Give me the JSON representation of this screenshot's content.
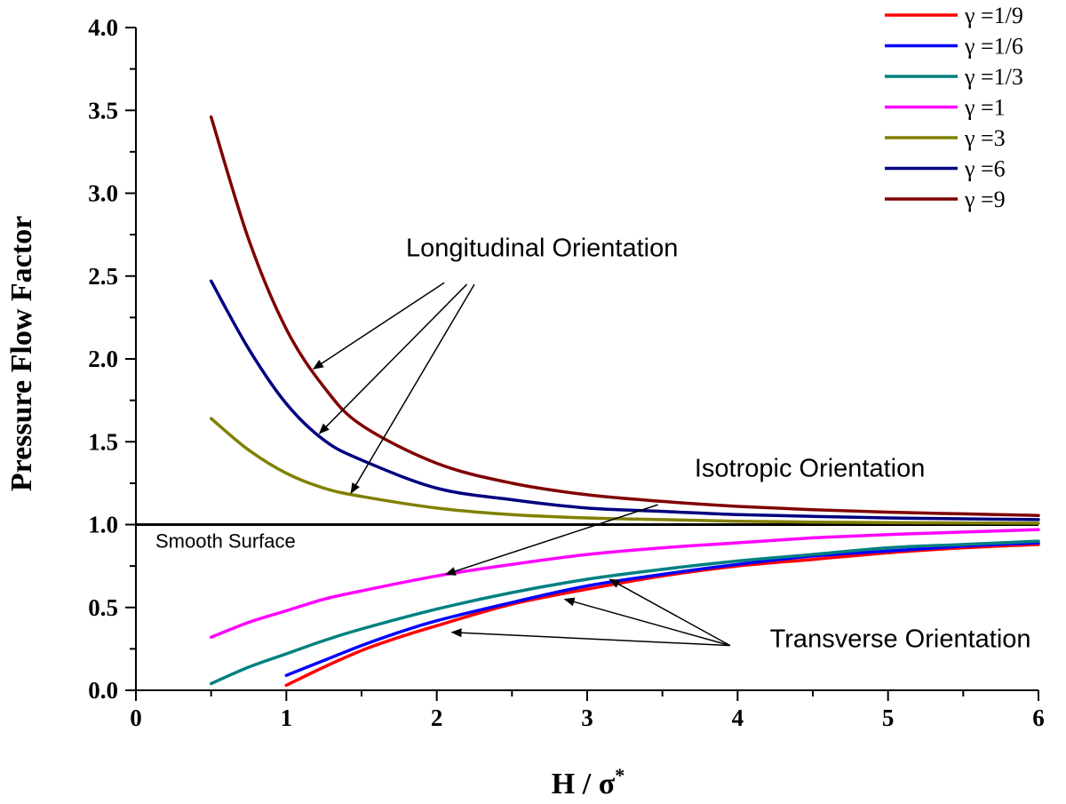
{
  "chart_data": {
    "type": "line",
    "xlabel": "H / σ",
    "xlabel_superscript": "*",
    "ylabel": "Pressure Flow Factor",
    "xlim": [
      0,
      6
    ],
    "ylim": [
      0,
      4
    ],
    "x_ticks": [
      "0",
      "1",
      "2",
      "3",
      "4",
      "5",
      "6"
    ],
    "y_ticks": [
      "0.0",
      "0.5",
      "1.0",
      "1.5",
      "2.0",
      "2.5",
      "3.0",
      "3.5",
      "4.0"
    ],
    "grid": false,
    "legend_position": "top-right",
    "series": [
      {
        "name": "γ =1/9",
        "color": "#ff0000",
        "x": [
          1.0,
          1.25,
          1.5,
          1.75,
          2.0,
          2.5,
          3.0,
          3.5,
          4.0,
          4.5,
          5.0,
          5.5,
          6.0
        ],
        "y": [
          0.03,
          0.14,
          0.24,
          0.32,
          0.39,
          0.52,
          0.61,
          0.69,
          0.75,
          0.79,
          0.83,
          0.86,
          0.88
        ]
      },
      {
        "name": "γ =1/6",
        "color": "#0000ff",
        "x": [
          1.0,
          1.25,
          1.5,
          1.75,
          2.0,
          2.5,
          3.0,
          3.5,
          4.0,
          4.5,
          5.0,
          5.5,
          6.0
        ],
        "y": [
          0.09,
          0.18,
          0.27,
          0.35,
          0.42,
          0.53,
          0.63,
          0.7,
          0.76,
          0.81,
          0.84,
          0.87,
          0.89
        ]
      },
      {
        "name": "γ =1/3",
        "color": "#008080",
        "x": [
          0.5,
          0.75,
          1.0,
          1.25,
          1.5,
          2.0,
          2.5,
          3.0,
          3.5,
          4.0,
          4.5,
          5.0,
          5.5,
          6.0
        ],
        "y": [
          0.04,
          0.14,
          0.22,
          0.3,
          0.37,
          0.49,
          0.59,
          0.67,
          0.73,
          0.78,
          0.82,
          0.86,
          0.88,
          0.9
        ]
      },
      {
        "name": "γ =1",
        "color": "#ff00ff",
        "x": [
          0.5,
          0.75,
          1.0,
          1.25,
          1.5,
          2.0,
          2.5,
          3.0,
          3.5,
          4.0,
          4.5,
          5.0,
          5.5,
          6.0
        ],
        "y": [
          0.32,
          0.41,
          0.48,
          0.55,
          0.6,
          0.69,
          0.76,
          0.82,
          0.86,
          0.89,
          0.92,
          0.94,
          0.955,
          0.97
        ]
      },
      {
        "name": "γ =3",
        "color": "#808000",
        "x": [
          0.5,
          0.75,
          1.0,
          1.25,
          1.5,
          2.0,
          2.5,
          3.0,
          3.5,
          4.0,
          4.5,
          5.0,
          5.5,
          6.0
        ],
        "y": [
          1.64,
          1.45,
          1.31,
          1.22,
          1.17,
          1.1,
          1.06,
          1.04,
          1.03,
          1.02,
          1.015,
          1.012,
          1.01,
          1.008
        ]
      },
      {
        "name": "γ =6",
        "color": "#000080",
        "x": [
          0.5,
          0.75,
          1.0,
          1.25,
          1.5,
          2.0,
          2.5,
          3.0,
          3.5,
          4.0,
          4.5,
          5.0,
          5.5,
          6.0
        ],
        "y": [
          2.47,
          2.06,
          1.73,
          1.51,
          1.39,
          1.22,
          1.15,
          1.1,
          1.08,
          1.06,
          1.05,
          1.04,
          1.035,
          1.03
        ]
      },
      {
        "name": "γ =9",
        "color": "#800000",
        "x": [
          0.5,
          0.75,
          1.0,
          1.25,
          1.5,
          2.0,
          2.5,
          3.0,
          3.5,
          4.0,
          4.5,
          5.0,
          5.5,
          6.0
        ],
        "y": [
          3.46,
          2.72,
          2.18,
          1.83,
          1.6,
          1.37,
          1.25,
          1.18,
          1.14,
          1.11,
          1.09,
          1.075,
          1.065,
          1.055
        ]
      }
    ],
    "reference_line": {
      "label": "Smooth Surface",
      "y": 1.0,
      "color": "#000000"
    },
    "annotations": [
      {
        "text": "Longitudinal Orientation",
        "text_x": 2.7,
        "text_y": 2.62,
        "arrows": [
          {
            "from_x": 2.05,
            "from_y": 2.46,
            "to_x": 1.18,
            "to_y": 1.94
          },
          {
            "from_x": 2.2,
            "from_y": 2.45,
            "to_x": 1.22,
            "to_y": 1.55
          },
          {
            "from_x": 2.25,
            "from_y": 2.45,
            "to_x": 1.43,
            "to_y": 1.19
          }
        ]
      },
      {
        "text": "Isotropic Orientation",
        "text_x": 4.48,
        "text_y": 1.29,
        "arrows": [
          {
            "from_x": 3.47,
            "from_y": 1.12,
            "to_x": 2.06,
            "to_y": 0.7
          }
        ]
      },
      {
        "text": "Transverse Orientation",
        "text_x": 5.95,
        "text_y": 0.26,
        "arrows": [
          {
            "from_x": 3.95,
            "from_y": 0.27,
            "to_x": 3.15,
            "to_y": 0.67
          },
          {
            "from_x": 3.95,
            "from_y": 0.27,
            "to_x": 2.85,
            "to_y": 0.55
          },
          {
            "from_x": 3.95,
            "from_y": 0.27,
            "to_x": 2.1,
            "to_y": 0.35
          }
        ]
      }
    ]
  }
}
